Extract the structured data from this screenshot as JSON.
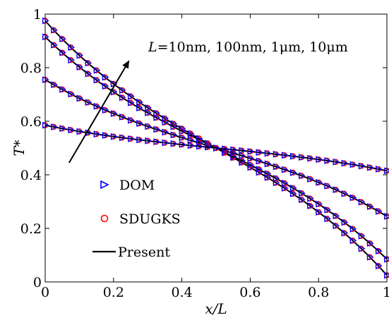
{
  "chart_data": {
    "type": "line",
    "xlabel": "x/L",
    "ylabel": "T*",
    "xlim": [
      0,
      1
    ],
    "ylim": [
      0,
      1
    ],
    "xticks": [
      0,
      0.2,
      0.4,
      0.6,
      0.8,
      1
    ],
    "yticks": [
      0,
      0.2,
      0.4,
      0.6,
      0.8,
      1
    ],
    "xtick_labels": [
      "0",
      "0.2",
      "0.4",
      "0.6",
      "0.8",
      "1"
    ],
    "ytick_labels": [
      "0",
      "0.2",
      "0.4",
      "0.6",
      "0.8",
      "1"
    ],
    "grid": false,
    "annotation": {
      "prefix": "L",
      "text": "=10nm, 100nm, 1μm, 10μm",
      "arrow": {
        "from": [
          0.07,
          0.445
        ],
        "to": [
          0.245,
          0.825
        ]
      }
    },
    "legend": {
      "placement": "left-center",
      "entries": [
        {
          "label": "DOM",
          "marker": "triangle-right",
          "color": "#0000ff"
        },
        {
          "label": "SDUGKS",
          "marker": "circle",
          "color": "#ff0000"
        },
        {
          "label": "Present",
          "marker": "line",
          "color": "#000000"
        }
      ]
    },
    "series": [
      {
        "start": 0.975,
        "end": 0.025
      },
      {
        "start": 0.915,
        "end": 0.085
      },
      {
        "start": 0.755,
        "end": 0.245
      },
      {
        "start": 0.585,
        "end": 0.415
      }
    ],
    "markers_per_series": 41
  }
}
